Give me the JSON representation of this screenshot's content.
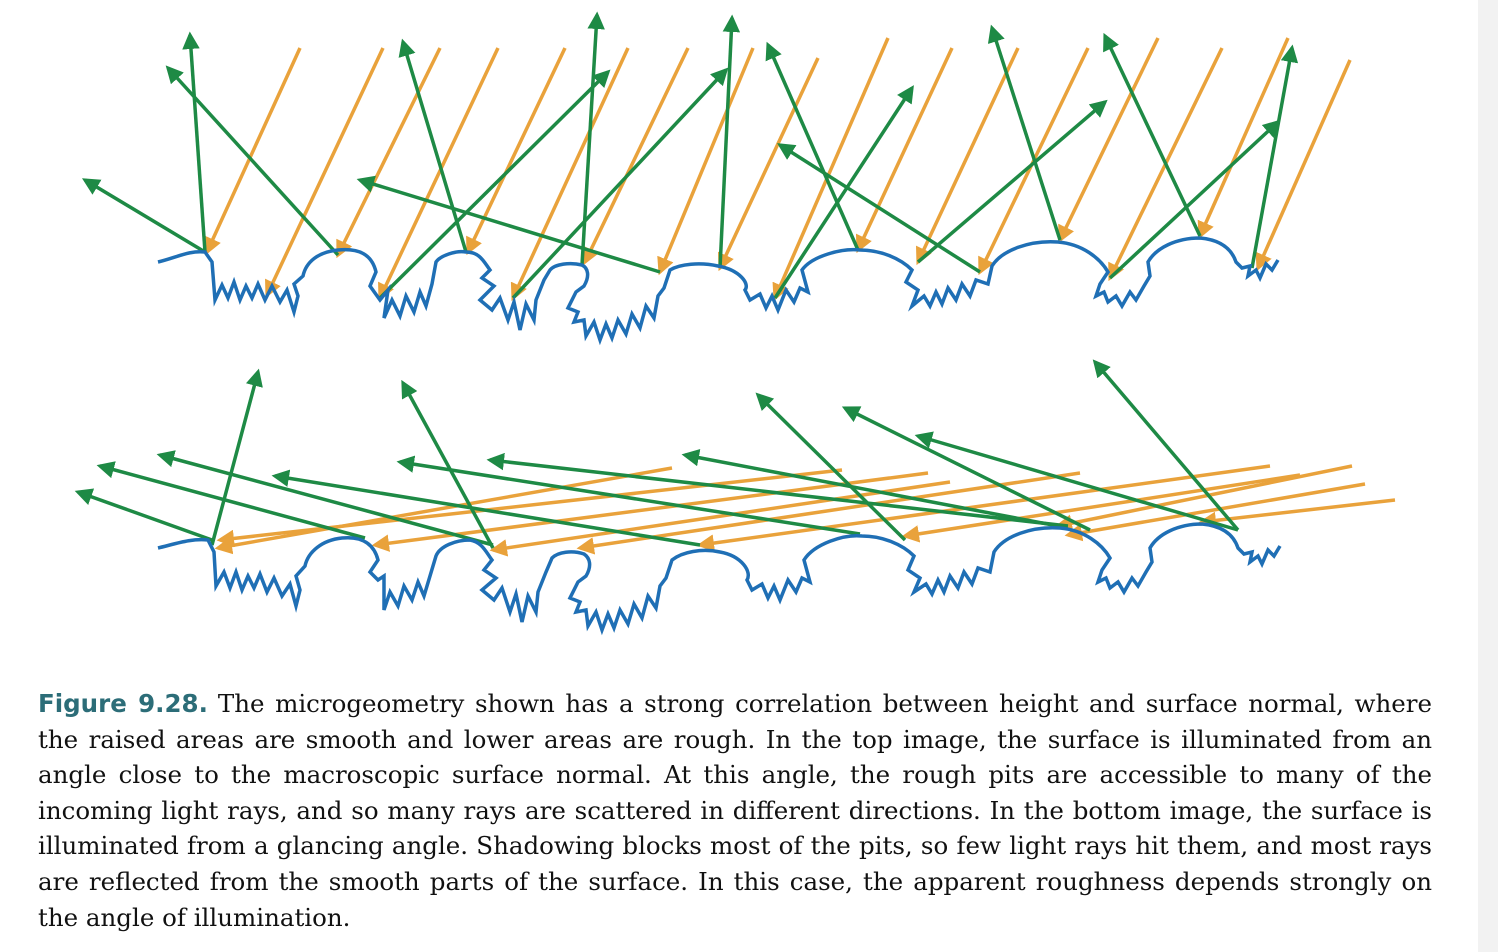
{
  "figure": {
    "colors": {
      "surface": "#1f6fb5",
      "incoming_ray": "#e9a23b",
      "reflected_ray": "#1e8a45"
    },
    "panels": [
      "top-image-normal-illumination",
      "bottom-image-glancing-illumination"
    ]
  },
  "caption": {
    "label": "Figure 9.28.",
    "text": "The microgeometry shown has a strong correlation between height and surface normal, where the raised areas are smooth and lower areas are rough.  In the top image, the surface is illuminated from an angle close to the macroscopic surface normal. At this angle, the rough pits are accessible to many of the incoming light rays, and so many rays are scattered in different directions. In the bottom image, the surface is illuminated from a glancing angle. Shadowing blocks most of the pits, so few light rays hit them, and most rays are reflected from the smooth parts of the surface. In this case, the apparent roughness depends strongly on the angle of illumination."
  }
}
